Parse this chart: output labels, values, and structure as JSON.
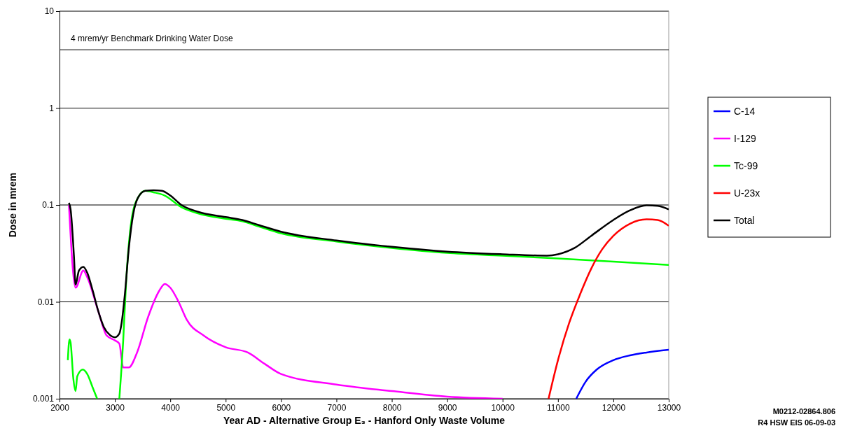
{
  "chart_data": {
    "type": "line",
    "xlabel": "Year AD - Alternative Group E₃ - Hanford Only Waste Volume",
    "ylabel": "Dose in mrem",
    "log": "y",
    "grid": "y",
    "legend": "right",
    "xlim": [
      2000,
      13000
    ],
    "xticks": [
      2000,
      3000,
      4000,
      5000,
      6000,
      7000,
      8000,
      9000,
      10000,
      11000,
      12000,
      13000
    ],
    "ylim": [
      0.001,
      10
    ],
    "yticks": [
      0.001,
      0.01,
      0.1,
      1,
      10
    ],
    "ref_lines": [
      {
        "axis": "y",
        "value": 4,
        "label": "4 mrem/yr Benchmark Drinking Water Dose",
        "color": "#000000"
      }
    ],
    "annotations": [
      "M0212-02864.806",
      "R4 HSW EIS 06-09-03"
    ],
    "series": [
      {
        "name": "C-14",
        "color": "#0000ff",
        "x": [
          11330,
          11500,
          11700,
          12000,
          12300,
          12600,
          13000
        ],
        "values": [
          0.001,
          0.0015,
          0.002,
          0.0025,
          0.0028,
          0.003,
          0.0032
        ]
      },
      {
        "name": "I-129",
        "color": "#ff00ff",
        "x": [
          2170,
          2290,
          2430,
          2500,
          2700,
          2850,
          3000,
          3080,
          3150,
          3250,
          3400,
          3600,
          3800,
          3900,
          4000,
          4150,
          4300,
          4600,
          5000,
          5400,
          5700,
          6000,
          7000,
          8000,
          9000,
          10000
        ],
        "values": [
          0.1,
          0.014,
          0.021,
          0.018,
          0.008,
          0.0045,
          0.004,
          0.0037,
          0.0021,
          0.0021,
          0.003,
          0.007,
          0.013,
          0.0153,
          0.014,
          0.01,
          0.0065,
          0.0045,
          0.0034,
          0.003,
          0.0023,
          0.0018,
          0.0014,
          0.0012,
          0.00105,
          0.001
        ]
      },
      {
        "name": "Tc-99",
        "color": "#00ff00",
        "x": [
          2150,
          2180,
          2200,
          2250,
          2290,
          2320,
          2420,
          2500,
          2600,
          2680,
          2900,
          3080,
          3150,
          3200,
          3300,
          3420,
          3550,
          3700,
          3900,
          4200,
          4500,
          5000,
          5300,
          5600,
          6000,
          7000,
          8000,
          9000,
          10000,
          11000,
          12000,
          13000
        ],
        "values": [
          0.0025,
          0.0041,
          0.0038,
          0.0016,
          0.0012,
          0.0017,
          0.002,
          0.0018,
          0.0013,
          0.001,
          null,
          0.001,
          0.004,
          0.015,
          0.07,
          0.12,
          0.14,
          0.135,
          0.125,
          0.095,
          0.082,
          0.072,
          0.068,
          0.06,
          0.051,
          0.042,
          0.036,
          0.032,
          0.03,
          0.028,
          0.026,
          0.024
        ]
      },
      {
        "name": "U-23x",
        "color": "#ff0000",
        "x": [
          10830,
          11000,
          11200,
          11400,
          11600,
          11800,
          12000,
          12300,
          12600,
          12800,
          13000
        ],
        "values": [
          0.001,
          0.0025,
          0.006,
          0.012,
          0.022,
          0.035,
          0.048,
          0.064,
          0.071,
          0.07,
          0.061
        ]
      },
      {
        "name": "Total",
        "color": "#000000",
        "x": [
          2170,
          2200,
          2260,
          2290,
          2350,
          2430,
          2500,
          2600,
          2700,
          2800,
          2900,
          3000,
          3080,
          3120,
          3180,
          3250,
          3330,
          3420,
          3550,
          3700,
          3850,
          4000,
          4200,
          4500,
          5000,
          5300,
          5600,
          6000,
          7000,
          8000,
          9000,
          10000,
          10800,
          11000,
          11300,
          11600,
          12000,
          12300,
          12600,
          12800,
          13000
        ],
        "values": [
          0.105,
          0.09,
          0.03,
          0.015,
          0.021,
          0.023,
          0.02,
          0.013,
          0.008,
          0.0055,
          0.0046,
          0.0043,
          0.0047,
          0.006,
          0.012,
          0.035,
          0.08,
          0.12,
          0.14,
          0.142,
          0.14,
          0.125,
          0.1,
          0.085,
          0.075,
          0.07,
          0.062,
          0.053,
          0.043,
          0.037,
          0.033,
          0.031,
          0.03,
          0.031,
          0.036,
          0.048,
          0.07,
          0.088,
          0.099,
          0.098,
          0.09
        ]
      }
    ]
  }
}
